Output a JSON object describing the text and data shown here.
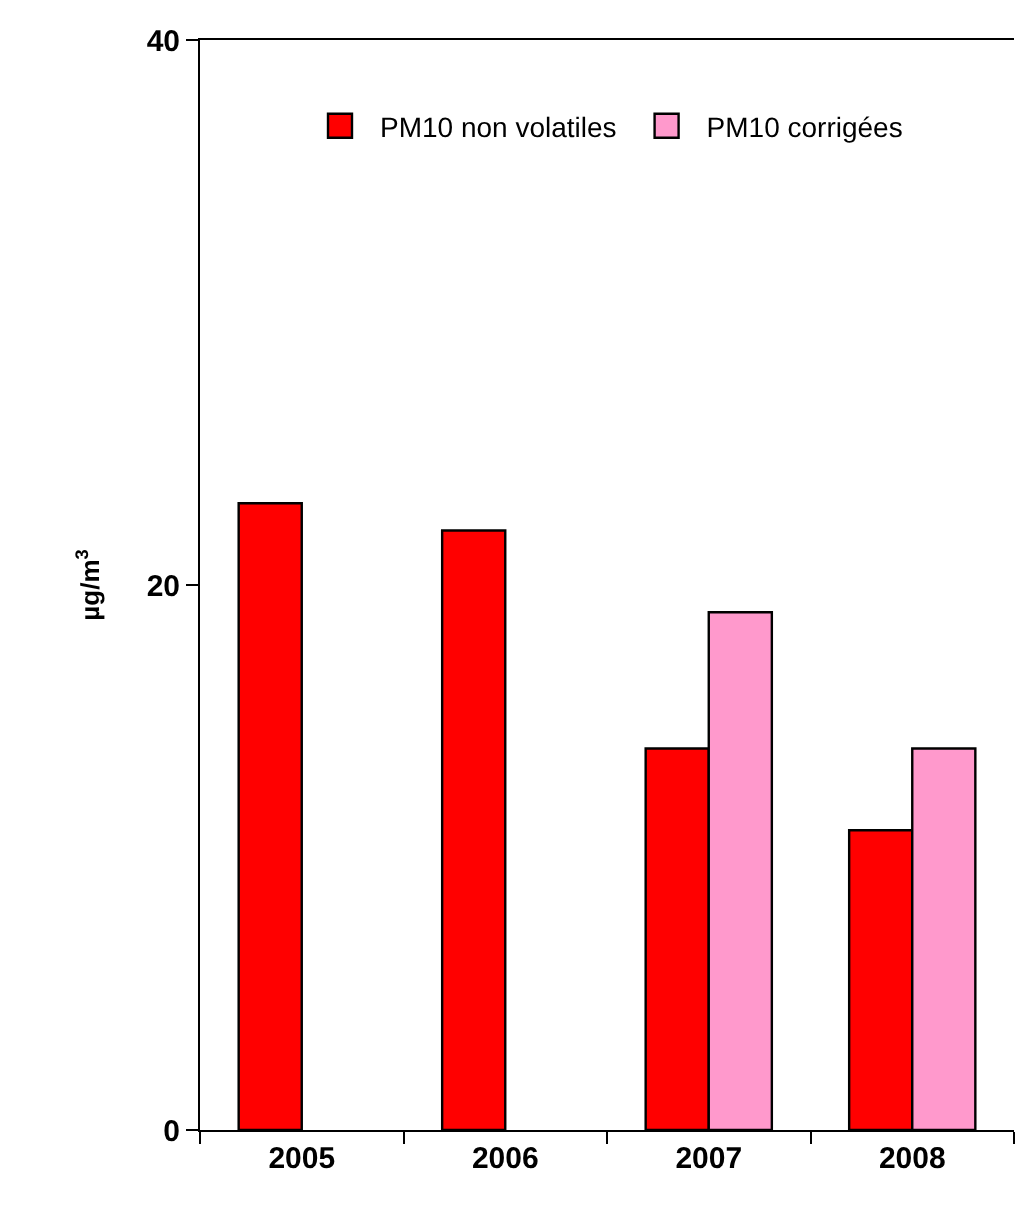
{
  "chart_data": {
    "type": "bar",
    "ylabel": "µg/m$^{3}$",
    "categories": [
      "2005",
      "2006",
      "2007",
      "2008"
    ],
    "series": [
      {
        "name": "PM10 non volatiles",
        "color": "#ff0000",
        "values": [
          23,
          22,
          14,
          11
        ]
      },
      {
        "name": "PM10 corrigées",
        "color": "#ff99cc",
        "values": [
          null,
          null,
          19,
          14
        ]
      }
    ],
    "ylim": [
      0,
      40
    ],
    "yticks": [
      0,
      20,
      40
    ],
    "grid": false,
    "legend": "top"
  }
}
